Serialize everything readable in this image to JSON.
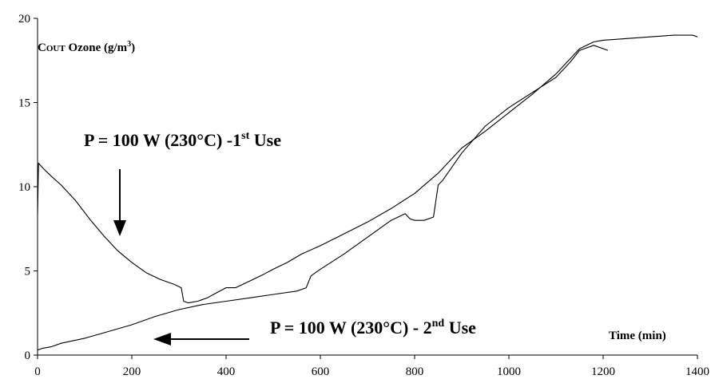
{
  "chart_data": {
    "type": "line",
    "title": "",
    "xlabel": "Time (min)",
    "ylabel": {
      "prefix": "C",
      "subscript": "OUT",
      "main": " Ozone (g/m",
      "superscript": "3",
      "suffix": ")"
    },
    "xlim": [
      0,
      1400
    ],
    "ylim": [
      0,
      20
    ],
    "xticks": [
      0,
      200,
      400,
      600,
      800,
      1000,
      1200,
      1400
    ],
    "yticks": [
      0,
      5,
      10,
      15,
      20
    ],
    "grid": false,
    "annotations": [
      {
        "id": "first-use",
        "main": "P = 100 W (230°C) -1",
        "superscript": "st",
        "suffix": " Use",
        "arrow": "down"
      },
      {
        "id": "second-use",
        "main": "P = 100 W (230°C) - 2",
        "superscript": "nd",
        "suffix": " Use",
        "arrow": "left"
      }
    ],
    "series": [
      {
        "x": [
          0,
          2,
          5,
          15,
          30,
          50,
          80,
          110,
          140,
          170,
          200,
          230,
          260,
          290,
          305,
          310,
          320,
          340,
          360,
          380,
          400,
          420,
          450,
          480,
          500,
          530,
          560,
          600,
          650,
          700,
          750,
          800,
          850,
          900,
          950,
          1000,
          1050,
          1100,
          1130,
          1150,
          1180,
          1200,
          1250,
          1300,
          1350,
          1390,
          1400
        ],
        "y": [
          8.3,
          11.4,
          11.3,
          11.0,
          10.6,
          10.1,
          9.2,
          8.1,
          7.1,
          6.2,
          5.5,
          4.9,
          4.5,
          4.2,
          4.0,
          3.2,
          3.1,
          3.2,
          3.4,
          3.7,
          4.0,
          4.0,
          4.4,
          4.8,
          5.1,
          5.5,
          6.0,
          6.5,
          7.2,
          7.9,
          8.7,
          9.6,
          10.8,
          12.3,
          13.3,
          14.4,
          15.5,
          16.7,
          17.6,
          18.2,
          18.6,
          18.7,
          18.8,
          18.9,
          19.0,
          19.0,
          18.9
        ]
      },
      {
        "x": [
          0,
          10,
          30,
          50,
          100,
          150,
          200,
          250,
          300,
          350,
          400,
          450,
          500,
          550,
          570,
          580,
          600,
          650,
          700,
          750,
          780,
          790,
          800,
          820,
          840,
          850,
          860,
          900,
          950,
          1000,
          1050,
          1100,
          1130,
          1150,
          1180,
          1210
        ],
        "y": [
          0.3,
          0.4,
          0.5,
          0.7,
          1.0,
          1.4,
          1.8,
          2.3,
          2.7,
          3.0,
          3.2,
          3.4,
          3.6,
          3.8,
          4.0,
          4.7,
          5.1,
          6.0,
          7.0,
          8.0,
          8.4,
          8.1,
          8.0,
          8.0,
          8.2,
          10.1,
          10.4,
          12.0,
          13.6,
          14.7,
          15.6,
          16.5,
          17.4,
          18.1,
          18.4,
          18.1
        ]
      }
    ]
  }
}
